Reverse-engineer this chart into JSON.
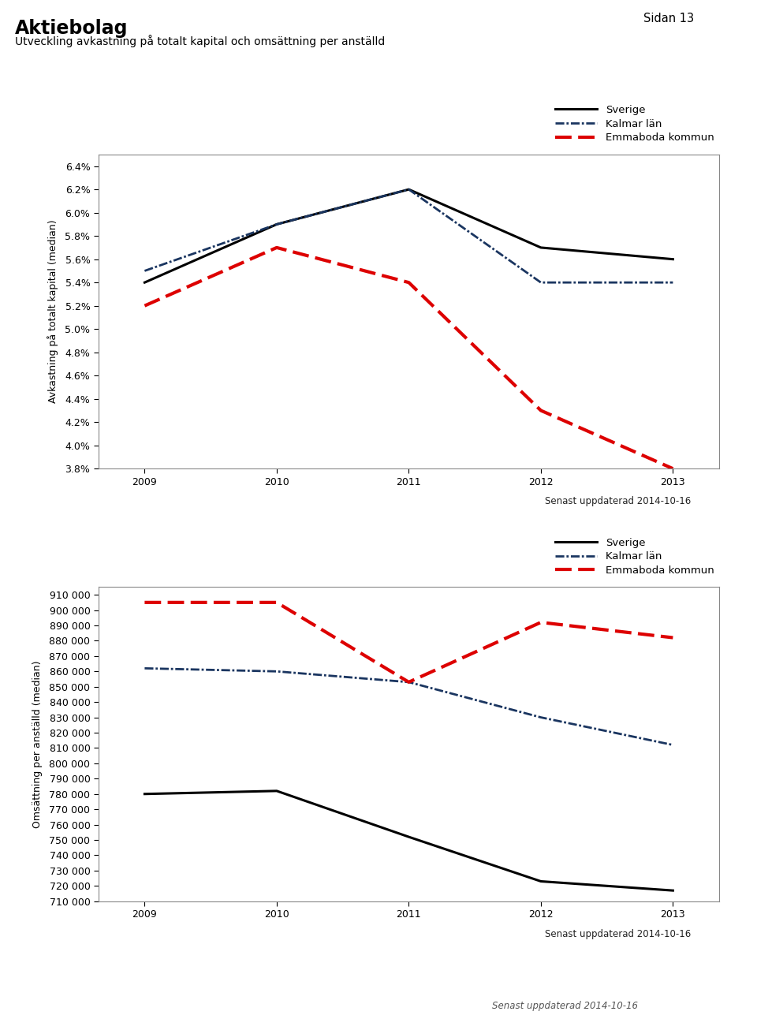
{
  "title_main": "Aktiebolag",
  "subtitle": "Utveckling avkastning på totalt kapital och omsättning per anställd",
  "page_label": "Sidan 13",
  "update_label": "Senast uppdaterad 2014-10-16",
  "years": [
    2009,
    2010,
    2011,
    2012,
    2013
  ],
  "chart1": {
    "ylabel": "Avkastning på totalt kapital (median)",
    "ylim": [
      0.038,
      0.065
    ],
    "yticks": [
      0.038,
      0.04,
      0.042,
      0.044,
      0.046,
      0.048,
      0.05,
      0.052,
      0.054,
      0.056,
      0.058,
      0.06,
      0.062,
      0.064
    ],
    "sverige": [
      0.054,
      0.059,
      0.062,
      0.057,
      0.056
    ],
    "kalmar": [
      0.055,
      0.059,
      0.062,
      0.054,
      0.054
    ],
    "emmaboda": [
      0.052,
      0.057,
      0.054,
      0.043,
      0.038
    ]
  },
  "chart2": {
    "ylabel": "Omsättning per anställd (median)",
    "ylim": [
      710000,
      915000
    ],
    "yticks": [
      710000,
      720000,
      730000,
      740000,
      750000,
      760000,
      770000,
      780000,
      790000,
      800000,
      810000,
      820000,
      830000,
      840000,
      850000,
      860000,
      870000,
      880000,
      890000,
      900000,
      910000
    ],
    "sverige": [
      780000,
      782000,
      752000,
      723000,
      717000
    ],
    "kalmar": [
      862000,
      860000,
      853000,
      830000,
      812000
    ],
    "emmaboda": [
      905000,
      905000,
      853000,
      892000,
      882000
    ]
  },
  "legend_labels": [
    "Sverige",
    "Kalmar län",
    "Emmaboda kommun"
  ],
  "colors": {
    "sverige": "#000000",
    "kalmar": "#1a3560",
    "emmaboda": "#dd0000"
  }
}
